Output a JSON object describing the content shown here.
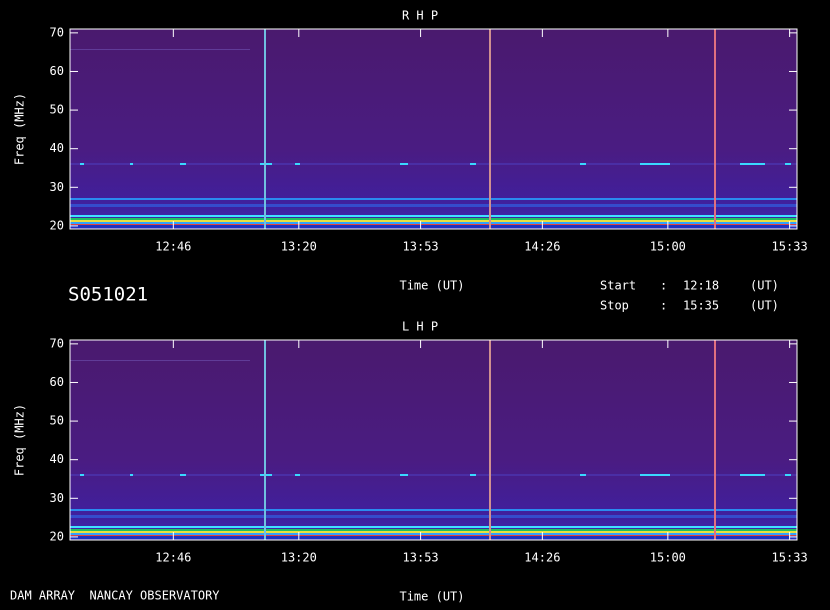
{
  "chart_data": [
    {
      "type": "spectrogram",
      "title": "R H P",
      "ylabel": "Freq (MHz)",
      "xlabel": "Time (UT)",
      "xlim": [
        738,
        935
      ],
      "xticks": [
        {
          "value": 766,
          "label": "12:46"
        },
        {
          "value": 800,
          "label": "13:20"
        },
        {
          "value": 833,
          "label": "13:53"
        },
        {
          "value": 866,
          "label": "14:26"
        },
        {
          "value": 900,
          "label": "15:00"
        },
        {
          "value": 933,
          "label": "15:33"
        }
      ],
      "ylim": [
        19.2,
        71
      ],
      "yticks": [
        20,
        30,
        40,
        50,
        60,
        70
      ]
    },
    {
      "type": "spectrogram",
      "title": "L H P",
      "ylabel": "Freq (MHz)",
      "xlabel": "Time (UT)",
      "xlim": [
        738,
        935
      ],
      "xticks": [
        {
          "value": 766,
          "label": "12:46"
        },
        {
          "value": 800,
          "label": "13:20"
        },
        {
          "value": 833,
          "label": "13:53"
        },
        {
          "value": 866,
          "label": "14:26"
        },
        {
          "value": 900,
          "label": "15:00"
        },
        {
          "value": 933,
          "label": "15:33"
        }
      ],
      "ylim": [
        19.2,
        71
      ],
      "yticks": [
        20,
        30,
        40,
        50,
        60,
        70
      ]
    }
  ],
  "info": {
    "id": "S051021",
    "start_label": "Start",
    "start_sep": ":",
    "start": "12:18",
    "start_unit": "(UT)",
    "stop_label": "Stop",
    "stop_sep": ":",
    "stop": "15:35",
    "stop_unit": "(UT)",
    "footer": "DAM ARRAY  NANCAY OBSERVATORY"
  }
}
